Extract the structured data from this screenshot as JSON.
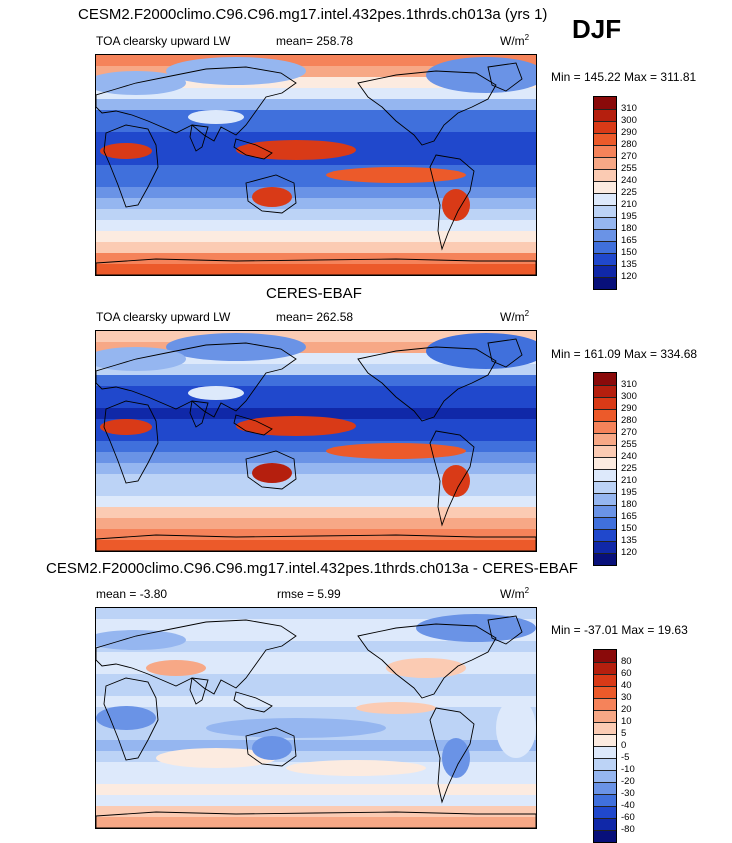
{
  "season": "DJF",
  "panels": [
    {
      "title": "CESM2.F2000climo.C96.C96.mg17.intel.432pes.1thrds.ch013a (yrs 1)",
      "variable": "TOA clearsky upward LW",
      "stat1": "mean= 258.78",
      "stat2": "",
      "units_base": "W/m",
      "units_exp": "2",
      "minmax": "Min = 145.22 Max = 311.81",
      "palette": "abs"
    },
    {
      "title": "CERES-EBAF",
      "variable": "TOA clearsky upward LW",
      "stat1": "mean= 262.58",
      "stat2": "",
      "units_base": "W/m",
      "units_exp": "2",
      "minmax": "Min = 161.09 Max = 334.68",
      "palette": "abs"
    },
    {
      "title": "CESM2.F2000climo.C96.C96.mg17.intel.432pes.1thrds.ch013a - CERES-EBAF",
      "variable": "",
      "stat1": "mean =  -3.80",
      "stat2": "rmse =   5.99",
      "units_base": "W/m",
      "units_exp": "2",
      "minmax": "Min = -37.01 Max =  19.63",
      "palette": "diff"
    }
  ],
  "colorbars": {
    "abs": {
      "labels": [
        "310",
        "300",
        "290",
        "280",
        "270",
        "255",
        "240",
        "225",
        "210",
        "195",
        "180",
        "165",
        "150",
        "135",
        "120"
      ],
      "colors": [
        "#8a0a0a",
        "#b51f0e",
        "#d93a17",
        "#ec5a2a",
        "#f5835a",
        "#f7a886",
        "#fbcbb3",
        "#fcebe0",
        "#dde9fb",
        "#bcd3f6",
        "#95b6f0",
        "#6a93e6",
        "#4070dc",
        "#2048cc",
        "#1028a8",
        "#08107a"
      ]
    },
    "diff": {
      "labels": [
        "80",
        "60",
        "40",
        "30",
        "20",
        "10",
        "5",
        "0",
        "-5",
        "-10",
        "-20",
        "-30",
        "-40",
        "-60",
        "-80"
      ],
      "colors": [
        "#8a0a0a",
        "#b51f0e",
        "#d93a17",
        "#ec5a2a",
        "#f5835a",
        "#f7a886",
        "#fbcbb3",
        "#fcebe0",
        "#dde9fb",
        "#bcd3f6",
        "#95b6f0",
        "#6a93e6",
        "#4070dc",
        "#2048cc",
        "#1028a8",
        "#08107a"
      ]
    }
  }
}
